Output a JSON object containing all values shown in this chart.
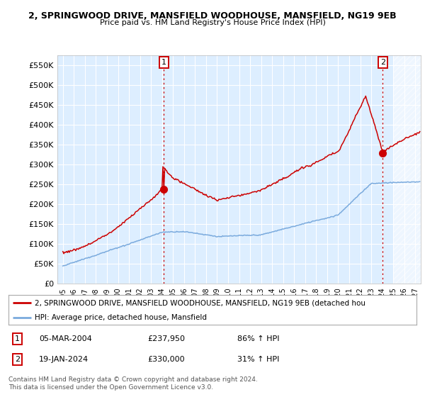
{
  "title_line1": "2, SPRINGWOOD DRIVE, MANSFIELD WOODHOUSE, MANSFIELD, NG19 9EB",
  "title_line2": "Price paid vs. HM Land Registry's House Price Index (HPI)",
  "ylabel_ticks": [
    "£0",
    "£50K",
    "£100K",
    "£150K",
    "£200K",
    "£250K",
    "£300K",
    "£350K",
    "£400K",
    "£450K",
    "£500K",
    "£550K"
  ],
  "ytick_values": [
    0,
    50000,
    100000,
    150000,
    200000,
    250000,
    300000,
    350000,
    400000,
    450000,
    500000,
    550000
  ],
  "ylim": [
    0,
    575000
  ],
  "xlim_start": 1994.5,
  "xlim_end": 2027.5,
  "hpi_color": "#7aaadd",
  "price_color": "#cc0000",
  "background_color": "#ddeeff",
  "grid_color": "#ffffff",
  "transaction1_x": 2004.17,
  "transaction1_price": 237950,
  "transaction2_x": 2024.05,
  "transaction2_price": 330000,
  "legend_line1": "2, SPRINGWOOD DRIVE, MANSFIELD WOODHOUSE, MANSFIELD, NG19 9EB (detached hou",
  "legend_line2": "HPI: Average price, detached house, Mansfield",
  "footer_line1": "Contains HM Land Registry data © Crown copyright and database right 2024.",
  "footer_line2": "This data is licensed under the Open Government Licence v3.0.",
  "table_row1": [
    "1",
    "05-MAR-2004",
    "£237,950",
    "86% ↑ HPI"
  ],
  "table_row2": [
    "2",
    "19-JAN-2024",
    "£330,000",
    "31% ↑ HPI"
  ]
}
